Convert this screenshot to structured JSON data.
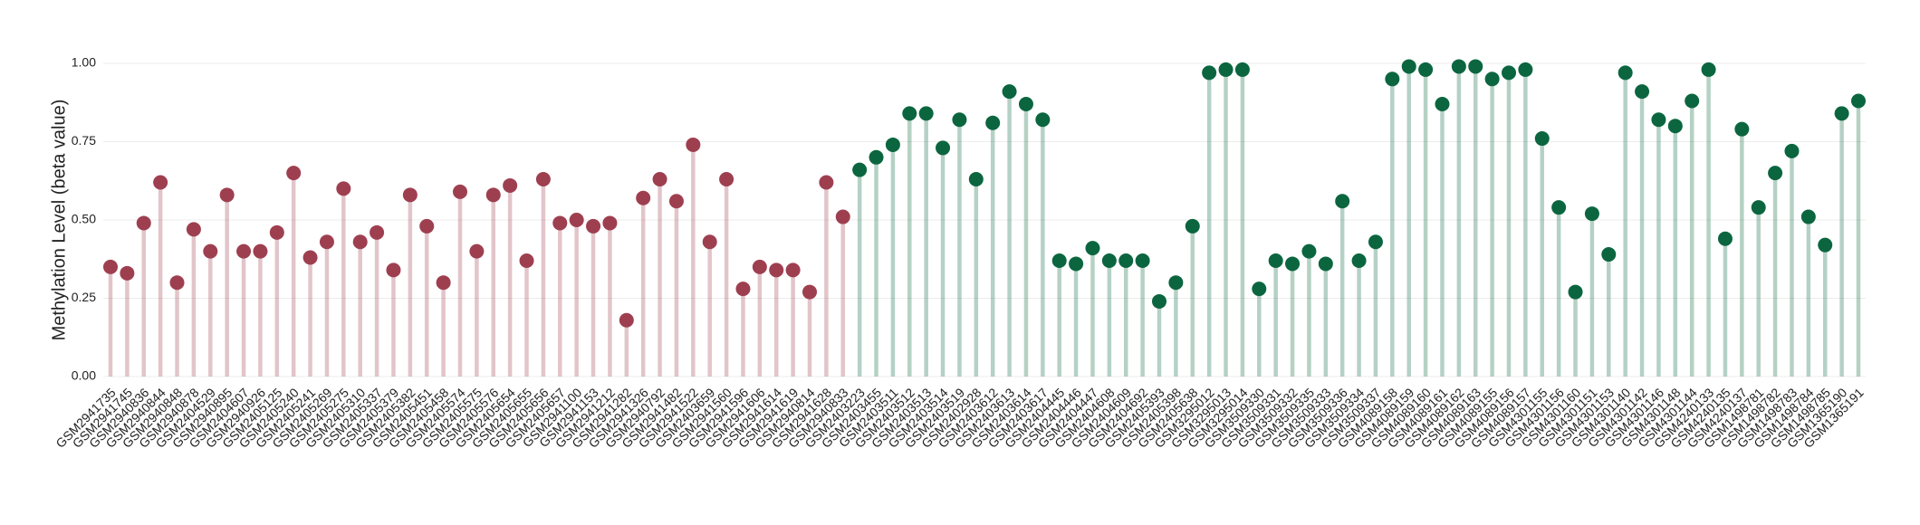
{
  "chart_data": {
    "type": "lollipop",
    "y_label": "Methylation Level (beta value)",
    "ylim": [
      0,
      1
    ],
    "yticks": [
      {
        "value": 0,
        "label": "0.00"
      },
      {
        "value": 0.25,
        "label": "0.25"
      },
      {
        "value": 0.5,
        "label": "0.50"
      },
      {
        "value": 0.75,
        "label": "0.75"
      },
      {
        "value": 1,
        "label": "1.00"
      }
    ],
    "grid": true,
    "categories": [
      "GSM2941735",
      "GSM2941745",
      "GSM2940836",
      "GSM2940844",
      "GSM2940848",
      "GSM2940878",
      "GSM2404529",
      "GSM2940895",
      "GSM2404607",
      "GSM2940926",
      "GSM2405125",
      "GSM2405240",
      "GSM2405241",
      "GSM2405269",
      "GSM2405275",
      "GSM2405310",
      "GSM2405337",
      "GSM2405379",
      "GSM2405382",
      "GSM2405451",
      "GSM2405458",
      "GSM2405574",
      "GSM2405575",
      "GSM2405576",
      "GSM2405654",
      "GSM2405655",
      "GSM2405656",
      "GSM2405657",
      "GSM2941100",
      "GSM2941153",
      "GSM2941212",
      "GSM2941282",
      "GSM2941326",
      "GSM2940792",
      "GSM2941482",
      "GSM2941522",
      "GSM2403659",
      "GSM2941560",
      "GSM2941596",
      "GSM2941606",
      "GSM2941614",
      "GSM2941619",
      "GSM2940814",
      "GSM2941628",
      "GSM2940833",
      "GSM2403223",
      "GSM2403455",
      "GSM2403511",
      "GSM2403512",
      "GSM2403513",
      "GSM2403514",
      "GSM2403519",
      "GSM2402928",
      "GSM2403612",
      "GSM2403613",
      "GSM2403614",
      "GSM2403617",
      "GSM2404445",
      "GSM2404446",
      "GSM2404447",
      "GSM2404608",
      "GSM2404609",
      "GSM2404692",
      "GSM2405393",
      "GSM2405398",
      "GSM2405638",
      "GSM3295012",
      "GSM3295013",
      "GSM3295014",
      "GSM3509330",
      "GSM3509331",
      "GSM3509332",
      "GSM3509335",
      "GSM3509333",
      "GSM3509336",
      "GSM3509334",
      "GSM3509337",
      "GSM4089158",
      "GSM4089159",
      "GSM4089160",
      "GSM4089161",
      "GSM4089162",
      "GSM4089163",
      "GSM4089155",
      "GSM4089156",
      "GSM4089157",
      "GSM4301155",
      "GSM4301156",
      "GSM4301160",
      "GSM4301151",
      "GSM4301153",
      "GSM4301140",
      "GSM4301142",
      "GSM4301146",
      "GSM4301148",
      "GSM4301144",
      "GSM4240133",
      "GSM4240135",
      "GSM4240137",
      "GSM1498781",
      "GSM1498782",
      "GSM1498783",
      "GSM1498784",
      "GSM1498785",
      "GSM1365190",
      "GSM1365191"
    ],
    "values": [
      0.35,
      0.33,
      0.49,
      0.62,
      0.3,
      0.47,
      0.4,
      0.58,
      0.4,
      0.4,
      0.46,
      0.65,
      0.38,
      0.43,
      0.6,
      0.43,
      0.46,
      0.34,
      0.58,
      0.48,
      0.3,
      0.59,
      0.4,
      0.58,
      0.61,
      0.37,
      0.63,
      0.49,
      0.5,
      0.48,
      0.49,
      0.18,
      0.57,
      0.63,
      0.56,
      0.74,
      0.43,
      0.63,
      0.28,
      0.35,
      0.34,
      0.34,
      0.27,
      0.62,
      0.51,
      0.66,
      0.7,
      0.74,
      0.84,
      0.84,
      0.73,
      0.82,
      0.63,
      0.81,
      0.91,
      0.87,
      0.82,
      0.37,
      0.36,
      0.41,
      0.37,
      0.37,
      0.37,
      0.24,
      0.3,
      0.48,
      0.97,
      0.98,
      0.98,
      0.28,
      0.37,
      0.36,
      0.4,
      0.36,
      0.56,
      0.37,
      0.43,
      0.95,
      0.99,
      0.98,
      0.87,
      0.99,
      0.99,
      0.95,
      0.97,
      0.98,
      0.76,
      0.54,
      0.27,
      0.52,
      0.39,
      0.97,
      0.91,
      0.82,
      0.8,
      0.88,
      0.98,
      0.44,
      0.79,
      0.54,
      0.65,
      0.72,
      0.51,
      0.42,
      0.84,
      0.88
    ],
    "point_colors": [
      "#9e3f50",
      "#9e3f50",
      "#9e3f50",
      "#9e3f50",
      "#9e3f50",
      "#9e3f50",
      "#9e3f50",
      "#9e3f50",
      "#9e3f50",
      "#9e3f50",
      "#9e3f50",
      "#9e3f50",
      "#9e3f50",
      "#9e3f50",
      "#9e3f50",
      "#9e3f50",
      "#9e3f50",
      "#9e3f50",
      "#9e3f50",
      "#9e3f50",
      "#9e3f50",
      "#9e3f50",
      "#9e3f50",
      "#9e3f50",
      "#9e3f50",
      "#9e3f50",
      "#9e3f50",
      "#9e3f50",
      "#9e3f50",
      "#9e3f50",
      "#9e3f50",
      "#9e3f50",
      "#9e3f50",
      "#9e3f50",
      "#9e3f50",
      "#9e3f50",
      "#9e3f50",
      "#9e3f50",
      "#9e3f50",
      "#9e3f50",
      "#9e3f50",
      "#9e3f50",
      "#9e3f50",
      "#9e3f50",
      "#9e3f50",
      "#0b6640",
      "#0b6640",
      "#0b6640",
      "#0b6640",
      "#0b6640",
      "#0b6640",
      "#0b6640",
      "#0b6640",
      "#0b6640",
      "#0b6640",
      "#0b6640",
      "#0b6640",
      "#0b6640",
      "#0b6640",
      "#0b6640",
      "#0b6640",
      "#0b6640",
      "#0b6640",
      "#0b6640",
      "#0b6640",
      "#0b6640",
      "#0b6640",
      "#0b6640",
      "#0b6640",
      "#0b6640",
      "#0b6640",
      "#0b6640",
      "#0b6640",
      "#0b6640",
      "#0b6640",
      "#0b6640",
      "#0b6640",
      "#0b6640",
      "#0b6640",
      "#0b6640",
      "#0b6640",
      "#0b6640",
      "#0b6640",
      "#0b6640",
      "#0b6640",
      "#0b6640",
      "#0b6640",
      "#0b6640",
      "#0b6640",
      "#0b6640",
      "#0b6640",
      "#0b6640",
      "#0b6640",
      "#0b6640",
      "#0b6640",
      "#0b6640",
      "#0b6640",
      "#0b6640",
      "#0b6640",
      "#0b6640",
      "#0b6640",
      "#0b6640",
      "#0b6640",
      "#0b6640",
      "#0b6640",
      "#0b6640",
      "#0b6640"
    ]
  }
}
